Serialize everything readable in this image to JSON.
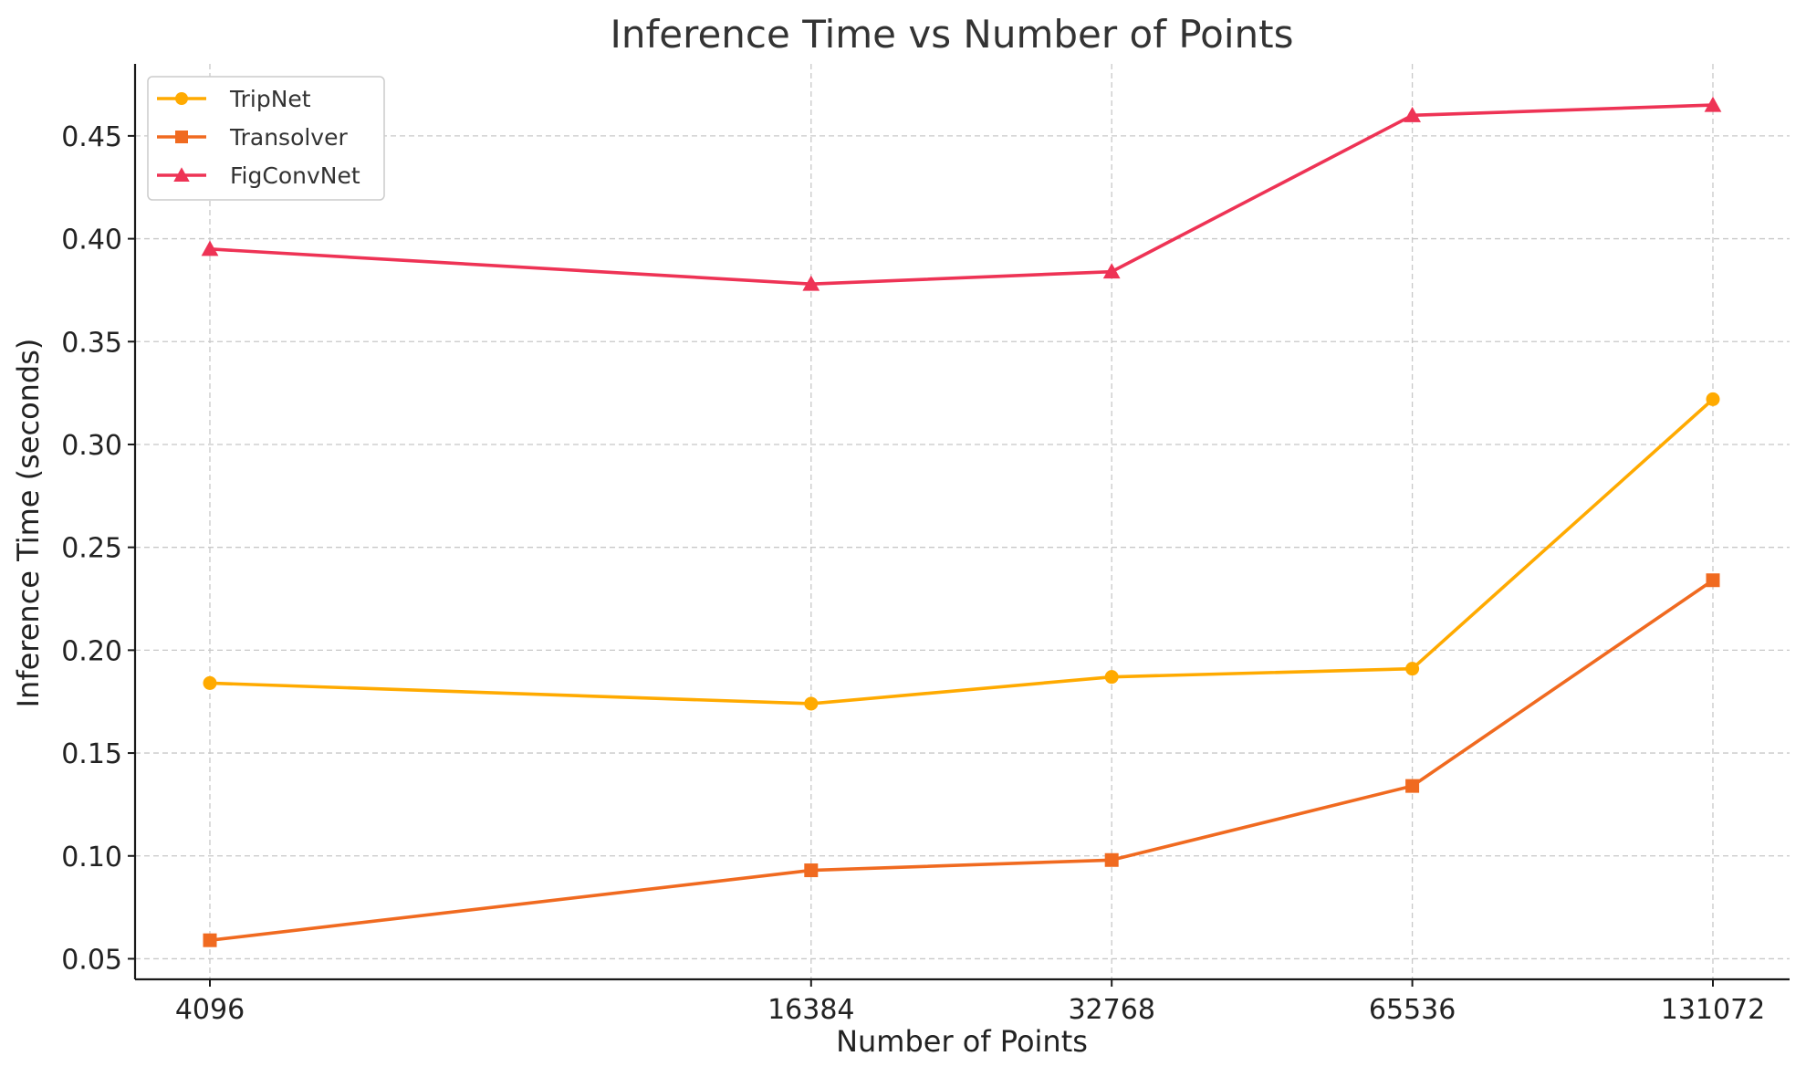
{
  "chart_data": {
    "type": "line",
    "title": "Inference Time vs Number of Points",
    "xlabel": "Number of Points",
    "ylabel": "Inference Time (seconds)",
    "x": [
      4096,
      16384,
      32768,
      65536,
      131072
    ],
    "x_tick_labels": [
      "4096",
      "16384",
      "32768",
      "65536",
      "131072"
    ],
    "x_scale": "log2",
    "ylim": [
      0.04,
      0.485
    ],
    "y_ticks": [
      0.05,
      0.1,
      0.15,
      0.2,
      0.25,
      0.3,
      0.35,
      0.4,
      0.45
    ],
    "y_tick_labels": [
      "0.05",
      "0.10",
      "0.15",
      "0.20",
      "0.25",
      "0.30",
      "0.35",
      "0.40",
      "0.45"
    ],
    "grid": true,
    "legend_position": "top-left",
    "series": [
      {
        "name": "TripNet",
        "color": "#FFAA00",
        "marker": "circle",
        "values": [
          0.184,
          0.174,
          0.187,
          0.191,
          0.322
        ]
      },
      {
        "name": "Transolver",
        "color": "#F06A20",
        "marker": "square",
        "values": [
          0.059,
          0.093,
          0.098,
          0.134,
          0.234
        ]
      },
      {
        "name": "FigConvNet",
        "color": "#EE3355",
        "marker": "triangle",
        "values": [
          0.395,
          0.378,
          0.384,
          0.46,
          0.465
        ]
      }
    ]
  }
}
